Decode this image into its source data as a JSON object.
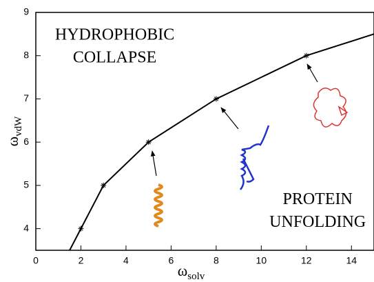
{
  "chart_data": {
    "type": "line",
    "xlabel": {
      "symbol": "ω",
      "sub": "solv"
    },
    "ylabel": {
      "symbol": "ω",
      "sub": "vdW"
    },
    "xlim": [
      0,
      15
    ],
    "xticks": [
      0,
      2,
      4,
      6,
      8,
      10,
      12,
      14
    ],
    "ylim": [
      3.5,
      9
    ],
    "yticks": [
      4,
      5,
      6,
      7,
      8,
      9
    ],
    "grid": false,
    "series": [
      {
        "color": "#000000",
        "x": [
          1.5,
          2,
          3,
          5,
          8,
          12,
          15
        ],
        "values": [
          3.5,
          4,
          5,
          6,
          7,
          8,
          8.5
        ]
      },
      {
        "color": "#000000",
        "marker": "asterisk",
        "x": [
          2,
          3,
          5,
          8,
          12
        ],
        "values": [
          4,
          5,
          6,
          7,
          8
        ]
      }
    ],
    "annotations": [
      {
        "lines": [
          "HYDROPHOBIC",
          "COLLAPSE"
        ],
        "x": 3.5,
        "y": 8.2
      },
      {
        "lines": [
          "PROTEIN",
          "UNFOLDING"
        ],
        "x": 12.5,
        "y": 4.4
      }
    ]
  }
}
